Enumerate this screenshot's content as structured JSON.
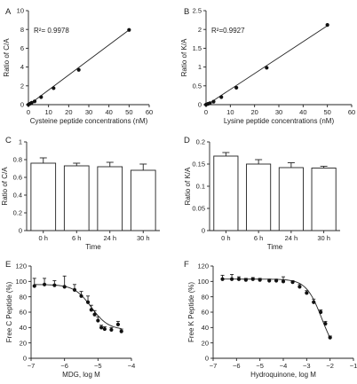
{
  "chart_data": [
    {
      "panel": "A",
      "type": "scatter",
      "xlabel": "Cysteine peptide concentrations (nM)",
      "ylabel": "Ratio of C/A",
      "xlim": [
        0,
        60
      ],
      "ylim": [
        0,
        10
      ],
      "xticks": [
        0,
        10,
        20,
        30,
        40,
        50,
        60
      ],
      "yticks": [
        0,
        2,
        4,
        6,
        8,
        10
      ],
      "annotation": "R²= 0.9978",
      "points": {
        "x": [
          0,
          0.8,
          1.6,
          3.1,
          6.3,
          12.5,
          25,
          50
        ],
        "y": [
          0.0,
          0.1,
          0.2,
          0.35,
          0.8,
          1.75,
          3.7,
          7.95
        ]
      },
      "fit": {
        "x": [
          0,
          50
        ],
        "y": [
          -0.05,
          7.95
        ]
      }
    },
    {
      "panel": "B",
      "type": "scatter",
      "xlabel": "Lysine peptide concentrations (nM)",
      "ylabel": "Ratio of  K/A",
      "xlim": [
        0,
        60
      ],
      "ylim": [
        0.0,
        2.5
      ],
      "xticks": [
        0,
        10,
        20,
        30,
        40,
        50,
        60
      ],
      "yticks": [
        0.0,
        0.5,
        1.0,
        1.5,
        2.0,
        2.5
      ],
      "annotation": "R²=0.9927",
      "points": {
        "x": [
          0,
          0.8,
          1.6,
          3.1,
          6.3,
          12.5,
          25,
          50
        ],
        "y": [
          0.0,
          0.02,
          0.04,
          0.08,
          0.2,
          0.45,
          0.98,
          2.12
        ]
      },
      "fit": {
        "x": [
          0,
          50
        ],
        "y": [
          -0.02,
          2.1
        ]
      }
    },
    {
      "panel": "C",
      "type": "bar",
      "categories": [
        "0 h",
        "6 h",
        "24 h",
        "30 h"
      ],
      "values": [
        0.76,
        0.73,
        0.72,
        0.68
      ],
      "errors": [
        0.06,
        0.03,
        0.05,
        0.07
      ],
      "xlabel": "Time",
      "ylabel": "Ratio of C/A",
      "ylim": [
        0,
        1
      ],
      "yticks": [
        0,
        0.2,
        0.4,
        0.6,
        0.8,
        1.0
      ]
    },
    {
      "panel": "D",
      "type": "bar",
      "categories": [
        "0 h",
        "6 h",
        "24 h",
        "30 h"
      ],
      "values": [
        0.168,
        0.15,
        0.142,
        0.141
      ],
      "errors": [
        0.008,
        0.01,
        0.011,
        0.004
      ],
      "xlabel": "Time",
      "ylabel": "Ratio of  K/A",
      "ylim": [
        0,
        0.2
      ],
      "yticks": [
        0,
        0.05,
        0.1,
        0.15,
        0.2
      ]
    },
    {
      "panel": "E",
      "type": "scatter",
      "xlabel": "MDG, log M",
      "ylabel": "Free C Peptide (%)",
      "xlim": [
        -7,
        -4
      ],
      "ylim": [
        0,
        120
      ],
      "xticks": [
        -7,
        -6,
        -5,
        -4
      ],
      "yticks": [
        0,
        20,
        40,
        60,
        80,
        100,
        120
      ],
      "points": {
        "x": [
          -6.9,
          -6.6,
          -6.3,
          -6.0,
          -5.7,
          -5.5,
          -5.3,
          -5.2,
          -5.1,
          -5.0,
          -4.9,
          -4.8,
          -4.6,
          -4.4,
          -4.3
        ],
        "y": [
          94,
          96,
          95,
          93,
          89,
          81,
          73,
          63,
          57,
          49,
          40,
          38,
          37,
          44,
          35
        ],
        "err": [
          10,
          8,
          6,
          14,
          7,
          6,
          8,
          6,
          5,
          5,
          3,
          3,
          3,
          4,
          3
        ]
      },
      "fit": {
        "top": 96,
        "bottom": 37,
        "logIC50": -5.2,
        "hill": 1.7
      }
    },
    {
      "panel": "F",
      "type": "scatter",
      "xlabel": "Hydroquinone, log M",
      "ylabel": "Free K Peptide (%)",
      "xlim": [
        -7,
        -1
      ],
      "ylim": [
        0,
        120
      ],
      "xticks": [
        -7,
        -6,
        -5,
        -4,
        -3,
        -2,
        -1
      ],
      "yticks": [
        0,
        20,
        40,
        60,
        80,
        100,
        120
      ],
      "points": {
        "x": [
          -6.6,
          -6.2,
          -5.9,
          -5.6,
          -5.3,
          -5.0,
          -4.6,
          -4.3,
          -4.0,
          -3.6,
          -3.3,
          -3.0,
          -2.7,
          -2.4,
          -2.2,
          -2.0
        ],
        "y": [
          103,
          103,
          103,
          102,
          103,
          102,
          101,
          101,
          100,
          99,
          93,
          85,
          73,
          60,
          45,
          27
        ],
        "err": [
          5,
          6,
          3,
          2,
          2,
          2,
          2,
          2,
          6,
          2,
          3,
          3,
          4,
          3,
          3,
          2
        ]
      },
      "fit": {
        "top": 103,
        "bottom": 0,
        "logIC50": -2.35,
        "hill": 1.3
      }
    }
  ]
}
